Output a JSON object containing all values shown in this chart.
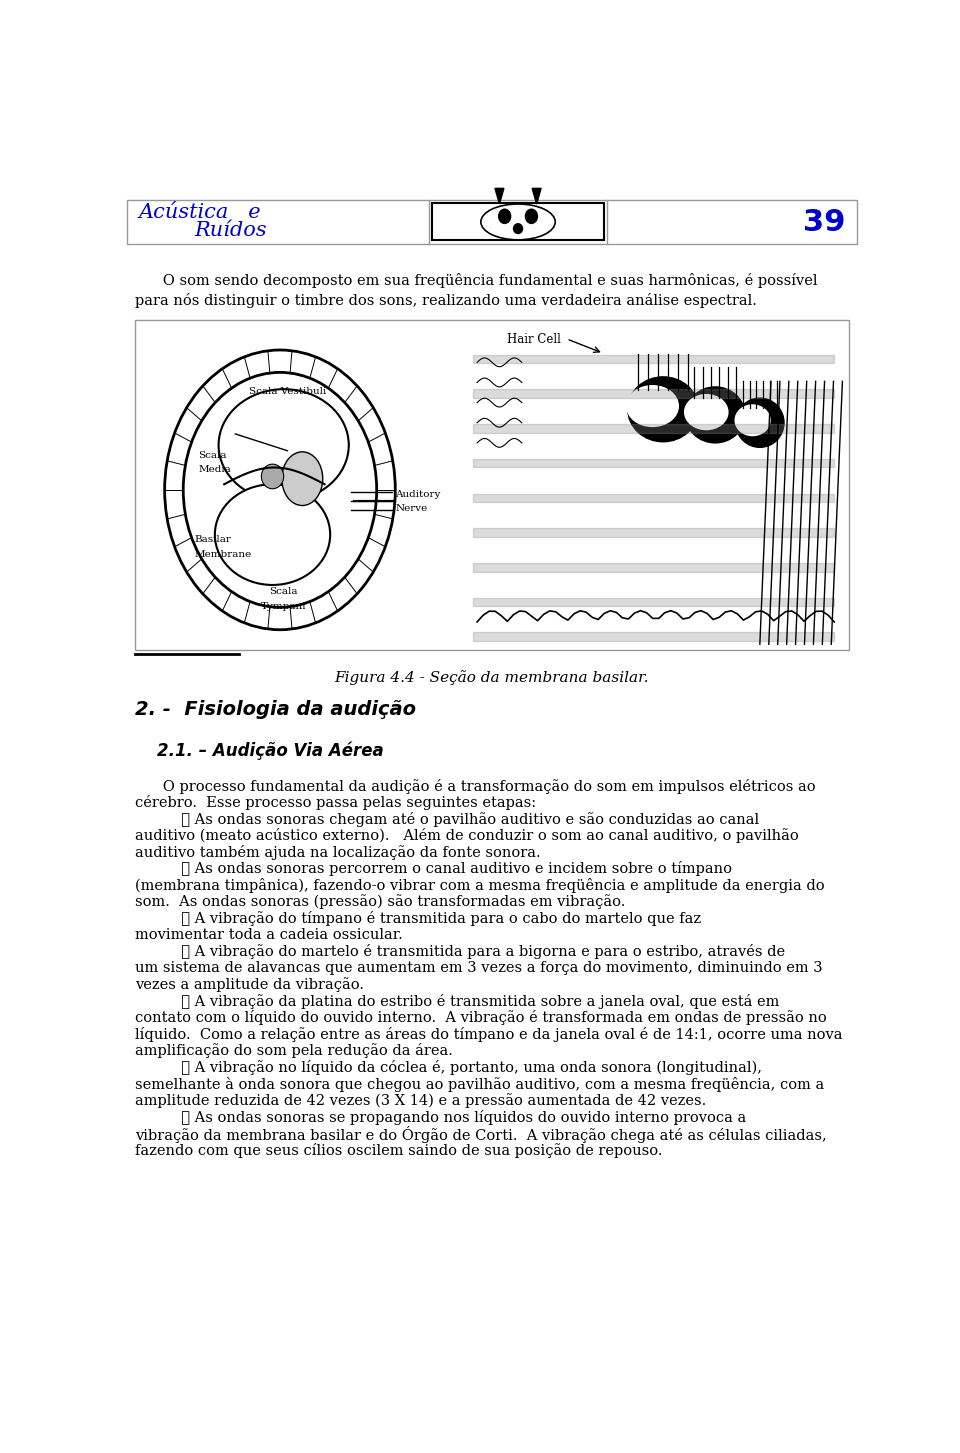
{
  "page_number": "39",
  "header_title_line1": "Acústica   e",
  "header_title_line2": "Ruídos",
  "intro_text": "      O som sendo decomposto em sua freqüência fundamental e suas harmônicas, é possível\npara nós distinguir o timbre dos sons, realizando uma verdadeira análise espectral.",
  "figure_caption": "Figura 4.4 - Seção da membrana basilar.",
  "section_title": "2. -  Fisiologia da audição",
  "subsection_title": "2.1. – Audição Via Aérea",
  "paragraph1_line1": "      O processo fundamental da audição é a transformação do som em impulsos elétricos ao",
  "paragraph1_line2": "cérebro.  Esse processo passa pelas seguintes etapas:",
  "item1_line1": "          ❶ As ondas sonoras chegam até o pavilhão auditivo e são conduzidas ao canal",
  "item1_line2": "auditivo (meato acústico externo).   Além de conduzir o som ao canal auditivo, o pavilhão",
  "item1_line3": "auditivo também ajuda na localização da fonte sonora.",
  "item2_line1": "          ❷ As ondas sonoras percorrem o canal auditivo e incidem sobre o tímpano",
  "item2_line2": "(membrana timpânica), fazendo-o vibrar com a mesma freqüência e amplitude da energia do",
  "item2_line3": "som.  As ondas sonoras (pressão) são transformadas em vibração.",
  "item3_line1": "          ❸ A vibração do tímpano é transmitida para o cabo do martelo que faz",
  "item3_line2": "movimentar toda a cadeia ossicular.",
  "item4_line1": "          ❹ A vibração do martelo é transmitida para a bigorna e para o estribo, através de",
  "item4_line2": "um sistema de alavancas que aumentam em 3 vezes a força do movimento, diminuindo em 3",
  "item4_line3": "vezes a amplitude da vibração.",
  "item5_line1": "          ❺ A vibração da platina do estribo é transmitida sobre a janela oval, que está em",
  "item5_line2": "contato com o líquido do ouvido interno.  A vibração é transformada em ondas de pressão no",
  "item5_line3": "líquido.  Como a relação entre as áreas do tímpano e da janela oval é de 14:1, ocorre uma nova",
  "item5_line4": "amplificação do som pela redução da área.",
  "item6_line1": "          ❻ A vibração no líquido da cóclea é, portanto, uma onda sonora (longitudinal),",
  "item6_line2": "semelhante à onda sonora que chegou ao pavilhão auditivo, com a mesma freqüência, com a",
  "item6_line3": "amplitude reduzida de 42 vezes (3 X 14) e a pressão aumentada de 42 vezes.",
  "item7_line1": "          ❼ As ondas sonoras se propagando nos líquidos do ouvido interno provoca a",
  "item7_line2": "vibração da membrana basilar e do Órgão de Corti.  A vibração chega até as células ciliadas,",
  "item7_line3": "fazendo com que seus cílios oscilem saindo de sua posição de repouso.",
  "title_color": "#0000cc",
  "body_color": "#000000",
  "bg_color": "#ffffff",
  "header_border_color": "#888888"
}
